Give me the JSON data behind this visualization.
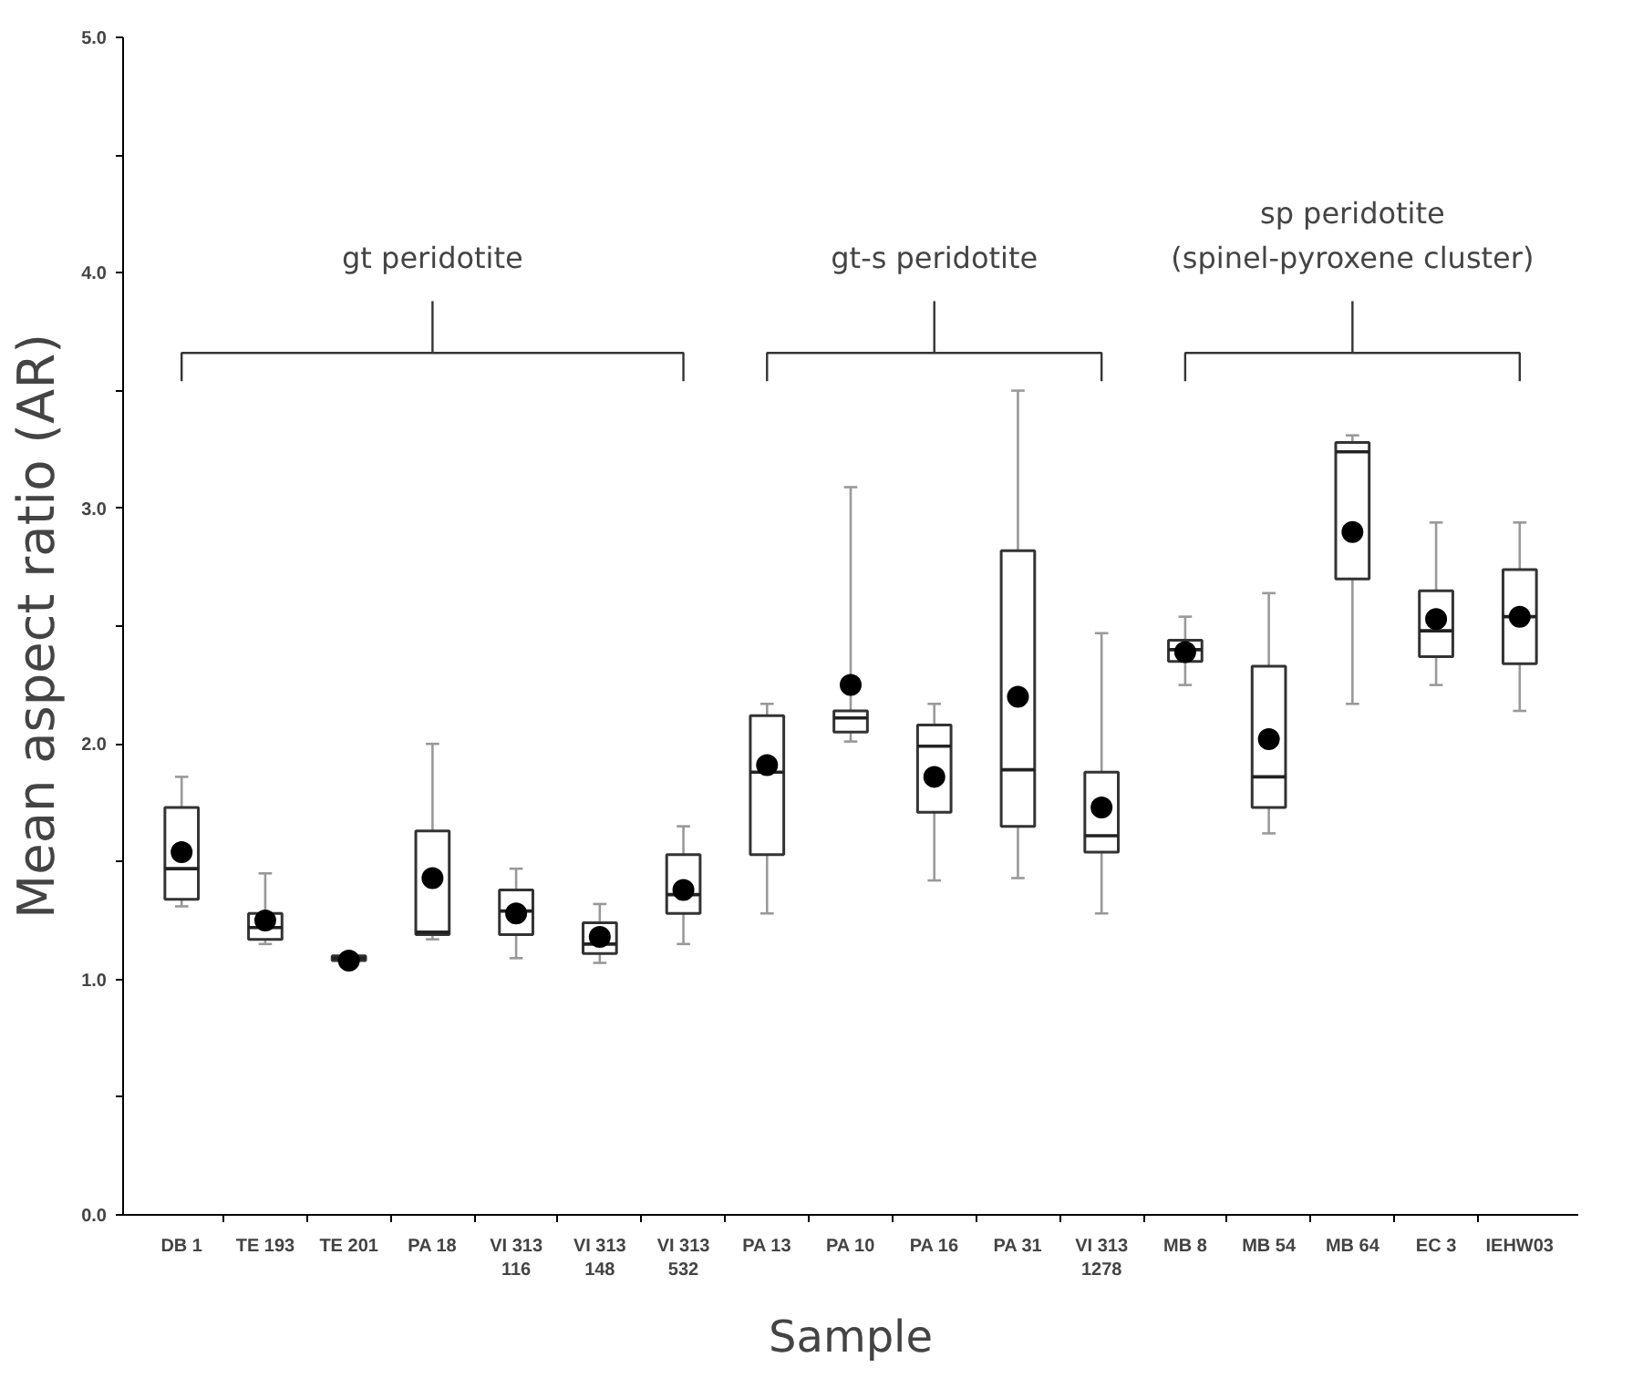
{
  "chart_data": {
    "type": "box",
    "xlabel": "Sample",
    "ylabel": "Mean aspect ratio (AR)",
    "categories": [
      "DB 1",
      "TE 193",
      "TE 201",
      "PA 18",
      "VI 313\n116",
      "VI 313\n148",
      "VI 313\n532",
      "PA 13",
      "PA 10",
      "PA 16",
      "PA 31",
      "VI 313\n1278",
      "MB 8",
      "MB 54",
      "MB 64",
      "EC 3",
      "IEHW03"
    ],
    "boxes": [
      {
        "low": 1.31,
        "q1": 1.34,
        "median": 1.47,
        "q3": 1.73,
        "high": 1.86,
        "mean": 1.54
      },
      {
        "low": 1.15,
        "q1": 1.17,
        "median": 1.22,
        "q3": 1.28,
        "high": 1.45,
        "mean": 1.25
      },
      {
        "low": 1.07,
        "q1": 1.08,
        "median": 1.09,
        "q3": 1.1,
        "high": 1.1,
        "mean": 1.08
      },
      {
        "low": 1.17,
        "q1": 1.19,
        "median": 1.2,
        "q3": 1.63,
        "high": 2.0,
        "mean": 1.43
      },
      {
        "low": 1.09,
        "q1": 1.19,
        "median": 1.29,
        "q3": 1.38,
        "high": 1.47,
        "mean": 1.28
      },
      {
        "low": 1.07,
        "q1": 1.11,
        "median": 1.15,
        "q3": 1.24,
        "high": 1.32,
        "mean": 1.18
      },
      {
        "low": 1.15,
        "q1": 1.28,
        "median": 1.36,
        "q3": 1.53,
        "high": 1.65,
        "mean": 1.38
      },
      {
        "low": 1.28,
        "q1": 1.53,
        "median": 1.88,
        "q3": 2.12,
        "high": 2.17,
        "mean": 1.91
      },
      {
        "low": 2.01,
        "q1": 2.05,
        "median": 2.11,
        "q3": 2.14,
        "high": 3.09,
        "mean": 2.25
      },
      {
        "low": 1.42,
        "q1": 1.71,
        "median": 1.99,
        "q3": 2.08,
        "high": 2.17,
        "mean": 1.86
      },
      {
        "low": 1.43,
        "q1": 1.65,
        "median": 1.89,
        "q3": 2.82,
        "high": 3.5,
        "mean": 2.2
      },
      {
        "low": 1.28,
        "q1": 1.54,
        "median": 1.61,
        "q3": 1.88,
        "high": 2.47,
        "mean": 1.73
      },
      {
        "low": 2.25,
        "q1": 2.35,
        "median": 2.4,
        "q3": 2.44,
        "high": 2.54,
        "mean": 2.39
      },
      {
        "low": 1.62,
        "q1": 1.73,
        "median": 1.86,
        "q3": 2.33,
        "high": 2.64,
        "mean": 2.02
      },
      {
        "low": 2.17,
        "q1": 2.7,
        "median": 3.24,
        "q3": 3.28,
        "high": 3.31,
        "mean": 2.9
      },
      {
        "low": 2.25,
        "q1": 2.37,
        "median": 2.48,
        "q3": 2.65,
        "high": 2.94,
        "mean": 2.53
      },
      {
        "low": 2.14,
        "q1": 2.34,
        "median": 2.54,
        "q3": 2.74,
        "high": 2.94,
        "mean": 2.54
      }
    ],
    "ylim": [
      0,
      5
    ],
    "yticks": [
      {
        "value": 0,
        "label": "0.0"
      },
      {
        "value": 0.5,
        "label": null
      },
      {
        "value": 1,
        "label": "1.0"
      },
      {
        "value": 1.5,
        "label": null
      },
      {
        "value": 2,
        "label": "2.0"
      },
      {
        "value": 2.5,
        "label": null
      },
      {
        "value": 3,
        "label": "3.0"
      },
      {
        "value": 3.5,
        "label": null
      },
      {
        "value": 4,
        "label": "4.0"
      },
      {
        "value": 4.5,
        "label": null
      },
      {
        "value": 5,
        "label": "5.0"
      }
    ],
    "annotations": [
      "gt peridotite",
      "gt-s peridotite",
      "sp peridotite\n(spinel-pyroxene cluster)"
    ],
    "grid": false
  }
}
